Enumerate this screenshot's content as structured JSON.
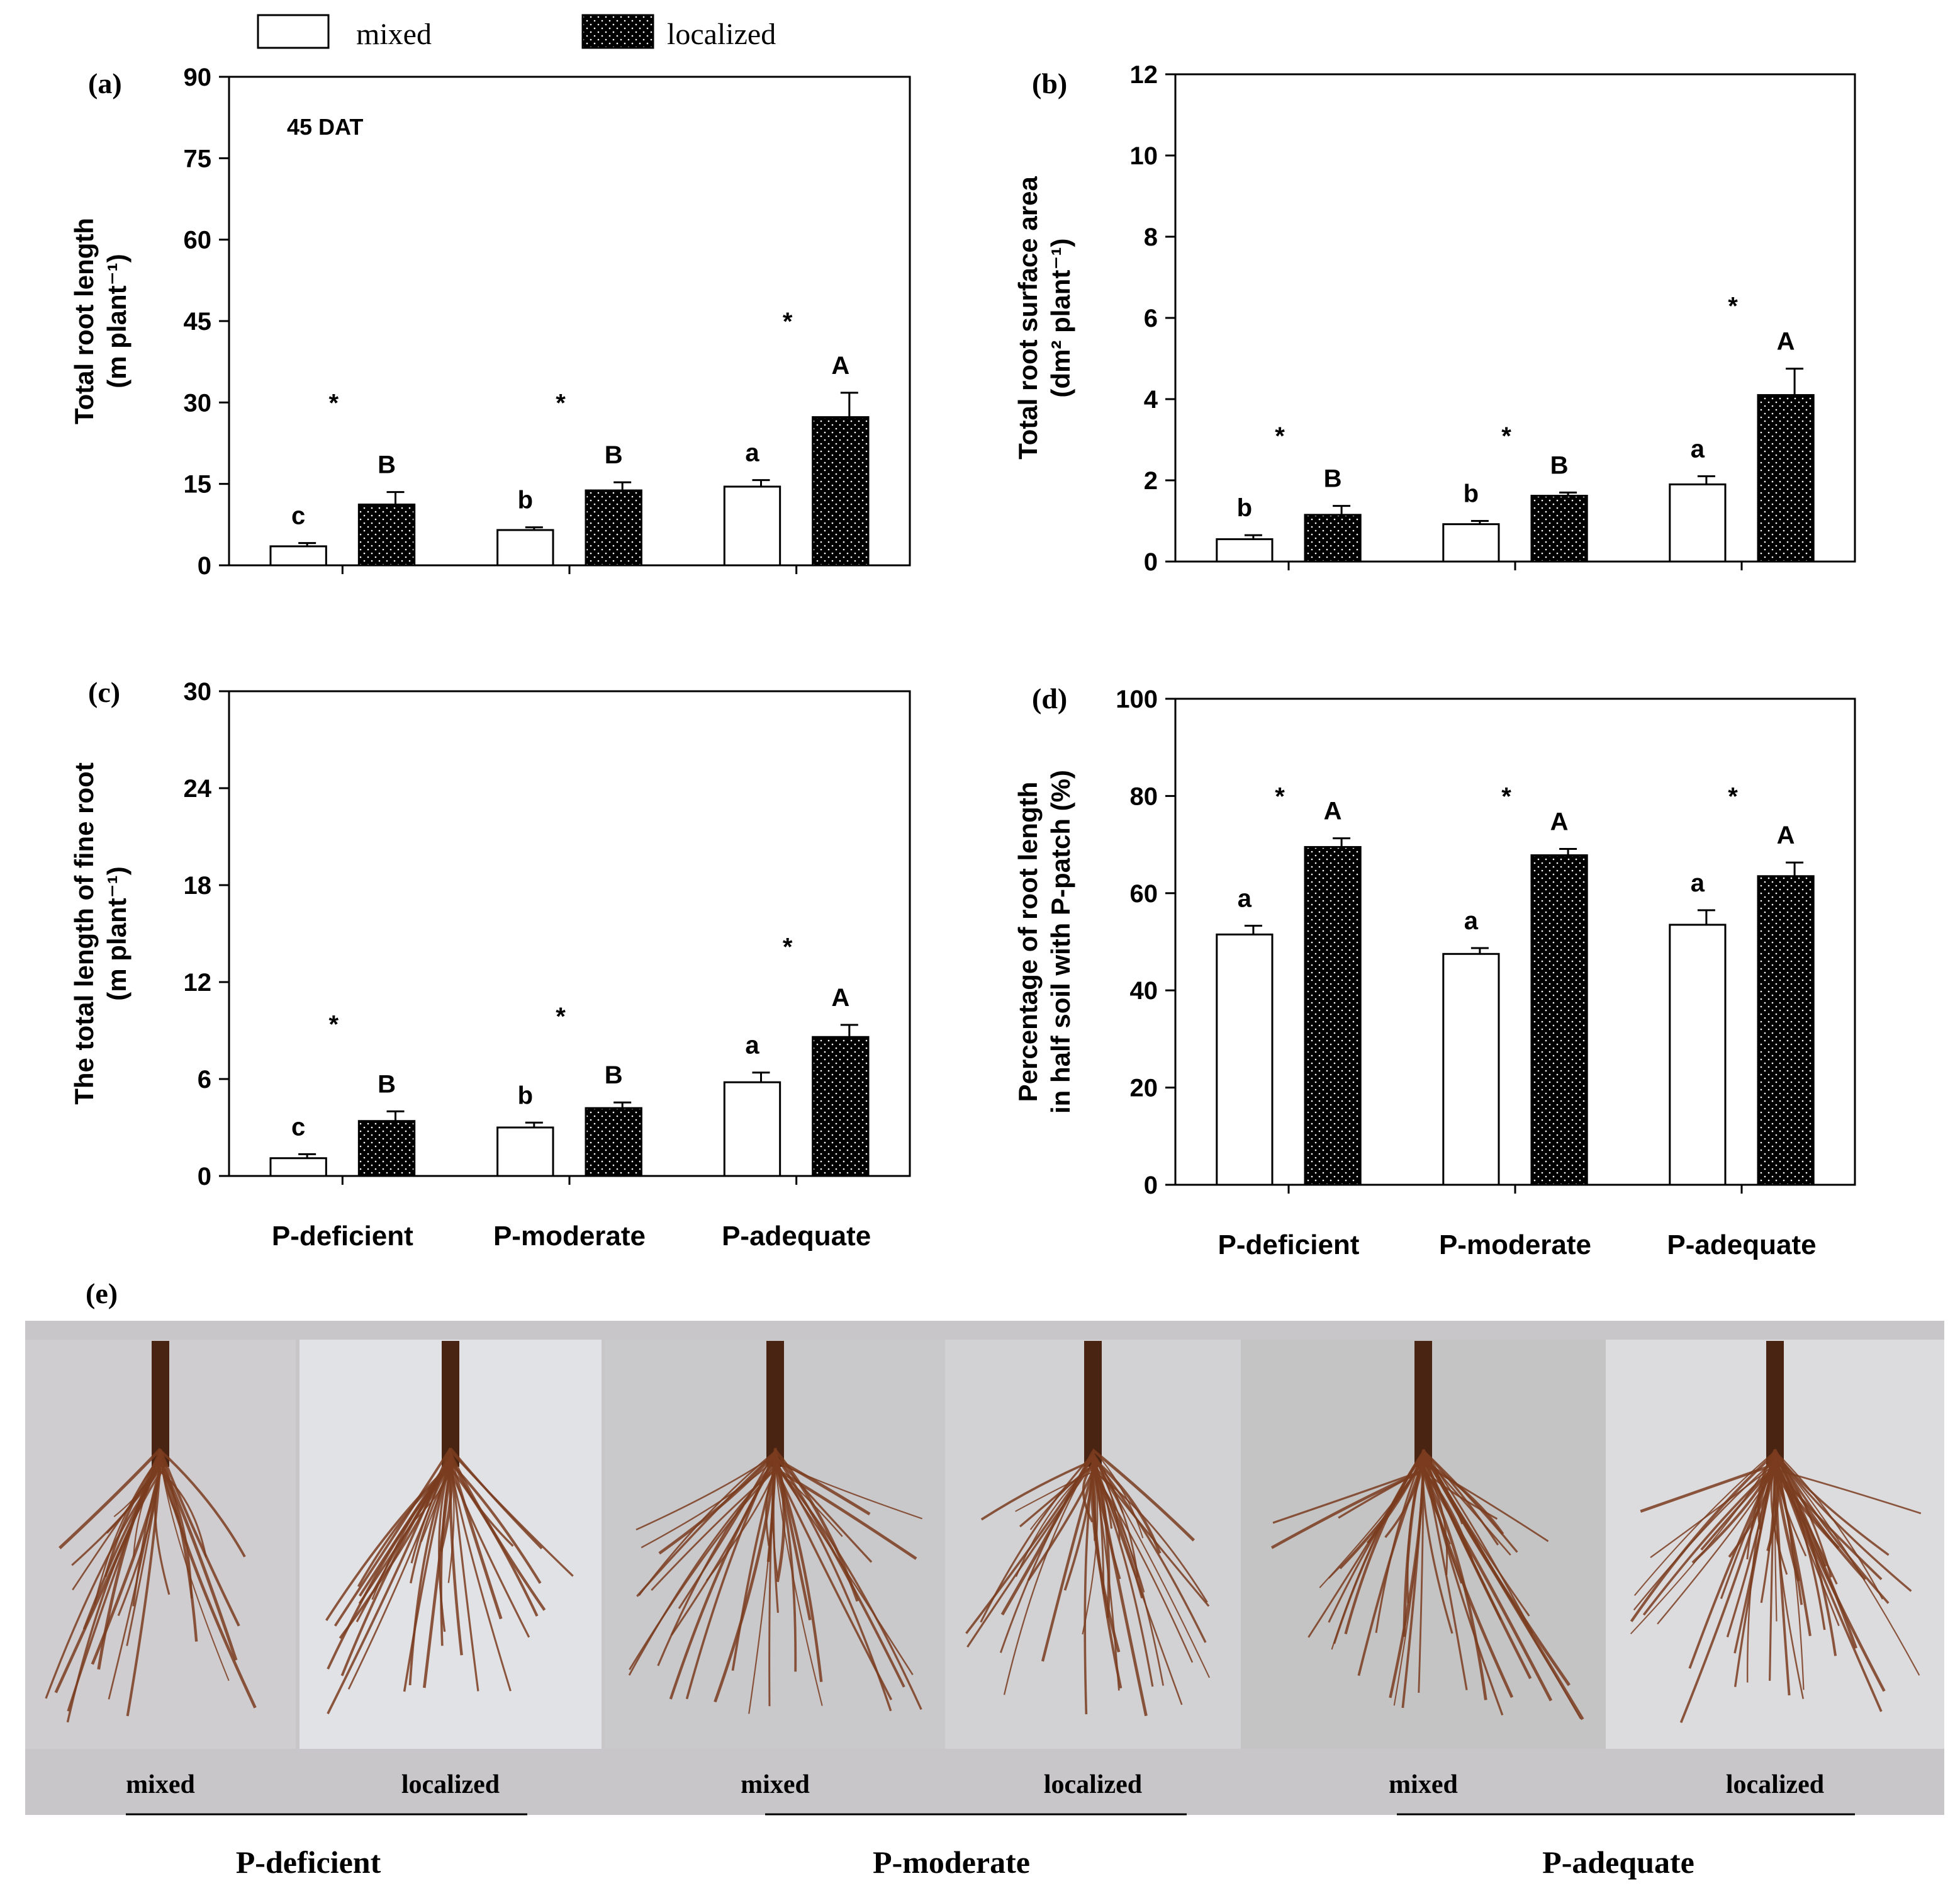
{
  "legend": {
    "items": [
      {
        "label": "mixed",
        "fill": "#ffffff"
      },
      {
        "label": "localized",
        "fill": "#000000"
      }
    ]
  },
  "treatments": [
    "P-deficient",
    "P-moderate",
    "P-adequate"
  ],
  "photo_panel": {
    "label": "(e)",
    "captions": [
      "mixed",
      "localized",
      "mixed",
      "localized",
      "mixed",
      "localized"
    ],
    "group_labels": [
      "P-deficient",
      "P-moderate",
      "P-adequate"
    ],
    "background": "#c8c6c9",
    "root_color": "#7a3c1e"
  },
  "chart_data": [
    {
      "panel": "(a)",
      "type": "bar",
      "annotation": "45 DAT",
      "ylabel": [
        "Total root length",
        "(m plant⁻¹)"
      ],
      "ylim": [
        0,
        90
      ],
      "yticks": [
        0,
        15,
        30,
        45,
        60,
        75,
        90
      ],
      "categories": [
        "P-deficient",
        "P-moderate",
        "P-adequate"
      ],
      "show_categories": false,
      "series": [
        {
          "name": "mixed",
          "values": [
            3.5,
            6.5,
            14.5
          ],
          "errors": [
            0.6,
            0.5,
            1.2
          ],
          "letters": [
            "c",
            "b",
            "a"
          ]
        },
        {
          "name": "localized",
          "values": [
            11.2,
            13.8,
            27.3
          ],
          "errors": [
            2.3,
            1.5,
            4.5
          ],
          "letters": [
            "B",
            "B",
            "A"
          ]
        }
      ],
      "significance": [
        "*",
        "*",
        "*"
      ],
      "significance_values": [
        30,
        30,
        45
      ]
    },
    {
      "panel": "(b)",
      "type": "bar",
      "annotation": "",
      "ylabel": [
        "Total root surface area",
        "(dm² plant⁻¹)"
      ],
      "ylim": [
        0,
        12
      ],
      "yticks": [
        0,
        2,
        4,
        6,
        8,
        10,
        12
      ],
      "categories": [
        "P-deficient",
        "P-moderate",
        "P-adequate"
      ],
      "show_categories": false,
      "series": [
        {
          "name": "mixed",
          "values": [
            0.55,
            0.92,
            1.9
          ],
          "errors": [
            0.1,
            0.08,
            0.2
          ],
          "letters": [
            "b",
            "b",
            "a"
          ]
        },
        {
          "name": "localized",
          "values": [
            1.15,
            1.62,
            4.1
          ],
          "errors": [
            0.22,
            0.08,
            0.65
          ],
          "letters": [
            "B",
            "B",
            "A"
          ]
        }
      ],
      "significance": [
        "*",
        "*",
        "*"
      ],
      "significance_values": [
        3.1,
        3.1,
        6.3
      ]
    },
    {
      "panel": "(c)",
      "type": "bar",
      "annotation": "",
      "ylabel": [
        "The total length of fine root",
        "(m plant⁻¹)"
      ],
      "ylim": [
        0,
        30
      ],
      "yticks": [
        0,
        6,
        12,
        18,
        24,
        30
      ],
      "categories": [
        "P-deficient",
        "P-moderate",
        "P-adequate"
      ],
      "show_categories": true,
      "series": [
        {
          "name": "mixed",
          "values": [
            1.1,
            3.0,
            5.8
          ],
          "errors": [
            0.25,
            0.3,
            0.6
          ],
          "letters": [
            "c",
            "b",
            "a"
          ]
        },
        {
          "name": "localized",
          "values": [
            3.4,
            4.2,
            8.6
          ],
          "errors": [
            0.6,
            0.35,
            0.75
          ],
          "letters": [
            "B",
            "B",
            "A"
          ]
        }
      ],
      "significance": [
        "*",
        "*",
        "*"
      ],
      "significance_values": [
        9.4,
        9.9,
        14.2
      ]
    },
    {
      "panel": "(d)",
      "type": "bar",
      "annotation": "",
      "ylabel": [
        "Percentage of root length",
        "in half soil with P-patch (%)"
      ],
      "ylim": [
        0,
        100
      ],
      "yticks": [
        0,
        20,
        40,
        60,
        80,
        100
      ],
      "categories": [
        "P-deficient",
        "P-moderate",
        "P-adequate"
      ],
      "show_categories": true,
      "series": [
        {
          "name": "mixed",
          "values": [
            51.5,
            47.5,
            53.5
          ],
          "errors": [
            1.8,
            1.2,
            3.0
          ],
          "letters": [
            "a",
            "a",
            "a"
          ]
        },
        {
          "name": "localized",
          "values": [
            69.5,
            67.8,
            63.5
          ],
          "errors": [
            1.8,
            1.3,
            2.8
          ],
          "letters": [
            "A",
            "A",
            "A"
          ]
        }
      ],
      "significance": [
        "*",
        "*",
        "*"
      ],
      "significance_values": [
        80,
        80,
        80
      ]
    }
  ]
}
